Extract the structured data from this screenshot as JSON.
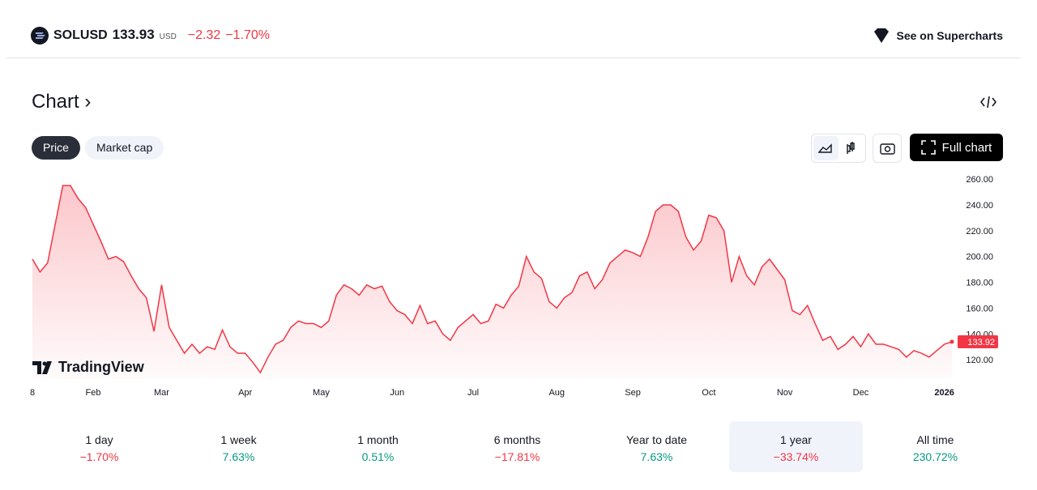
{
  "header": {
    "symbol": "SOLUSD",
    "price": "133.93",
    "currency": "USD",
    "change": "−2.32",
    "change_percent": "−1.70%",
    "link": "See on Supercharts"
  },
  "section": {
    "title": "Chart",
    "tabs": [
      "Price",
      "Market cap"
    ],
    "full_chart": "Full chart",
    "watermark": "TradingView"
  },
  "chart_data": {
    "type": "area",
    "color": "#f23645",
    "categories": [
      "8",
      null,
      null,
      null,
      null,
      null,
      null,
      null,
      "Feb",
      null,
      null,
      null,
      null,
      null,
      null,
      null,
      null,
      "Mar",
      null,
      null,
      null,
      null,
      null,
      null,
      null,
      null,
      null,
      null,
      "Apr",
      null,
      null,
      null,
      null,
      null,
      null,
      null,
      null,
      null,
      "May",
      null,
      null,
      null,
      null,
      null,
      null,
      null,
      null,
      null,
      "Jun",
      null,
      null,
      null,
      null,
      null,
      null,
      null,
      null,
      null,
      "Jul",
      null,
      null,
      null,
      null,
      null,
      null,
      null,
      null,
      null,
      null,
      "Aug",
      null,
      null,
      null,
      null,
      null,
      null,
      null,
      null,
      null,
      "Sep",
      null,
      null,
      null,
      null,
      null,
      null,
      null,
      null,
      null,
      "Oct",
      null,
      null,
      null,
      null,
      null,
      null,
      null,
      null,
      null,
      "Nov",
      null,
      null,
      null,
      null,
      null,
      null,
      null,
      null,
      null,
      "Dec",
      null,
      null,
      null,
      null,
      null,
      null,
      null,
      null,
      null,
      null,
      "2026",
      null
    ],
    "values": [
      198,
      188,
      195,
      225,
      255,
      255,
      245,
      238,
      225,
      212,
      198,
      200,
      196,
      185,
      175,
      168,
      142,
      178,
      145,
      135,
      125,
      132,
      125,
      130,
      128,
      143,
      130,
      125,
      125,
      118,
      110,
      122,
      132,
      135,
      145,
      150,
      148,
      148,
      145,
      150,
      170,
      178,
      175,
      170,
      178,
      175,
      177,
      165,
      158,
      155,
      148,
      162,
      148,
      150,
      140,
      135,
      145,
      150,
      155,
      148,
      150,
      163,
      160,
      170,
      177,
      200,
      188,
      183,
      165,
      160,
      168,
      172,
      185,
      188,
      175,
      182,
      195,
      200,
      205,
      203,
      200,
      215,
      235,
      240,
      240,
      235,
      215,
      205,
      212,
      232,
      230,
      220,
      180,
      200,
      185,
      178,
      192,
      198,
      190,
      182,
      158,
      155,
      162,
      148,
      135,
      138,
      128,
      132,
      138,
      130,
      140,
      132,
      132,
      130,
      128,
      122,
      127,
      125,
      122,
      127,
      132,
      133.92
    ],
    "ylim": [
      105,
      267
    ],
    "yticks": [
      {
        "value": 120,
        "label": "120.00"
      },
      {
        "value": 140,
        "label": "140.00"
      },
      {
        "value": 160,
        "label": "160.00"
      },
      {
        "value": 180,
        "label": "180.00"
      },
      {
        "value": 200,
        "label": "200.00"
      },
      {
        "value": 220,
        "label": "220.00"
      },
      {
        "value": 240,
        "label": "240.00"
      },
      {
        "value": 260,
        "label": "260.00"
      }
    ]
  },
  "periods": [
    {
      "label": "1 day",
      "change": "−1.70%"
    },
    {
      "label": "1 week",
      "change": "7.63%"
    },
    {
      "label": "1 month",
      "change": "0.51%"
    },
    {
      "label": "6 months",
      "change": "−17.81%"
    },
    {
      "label": "Year to date",
      "change": "7.63%"
    },
    {
      "label": "1 year",
      "change": "−33.74%"
    },
    {
      "label": "All time",
      "change": "230.72%"
    }
  ]
}
